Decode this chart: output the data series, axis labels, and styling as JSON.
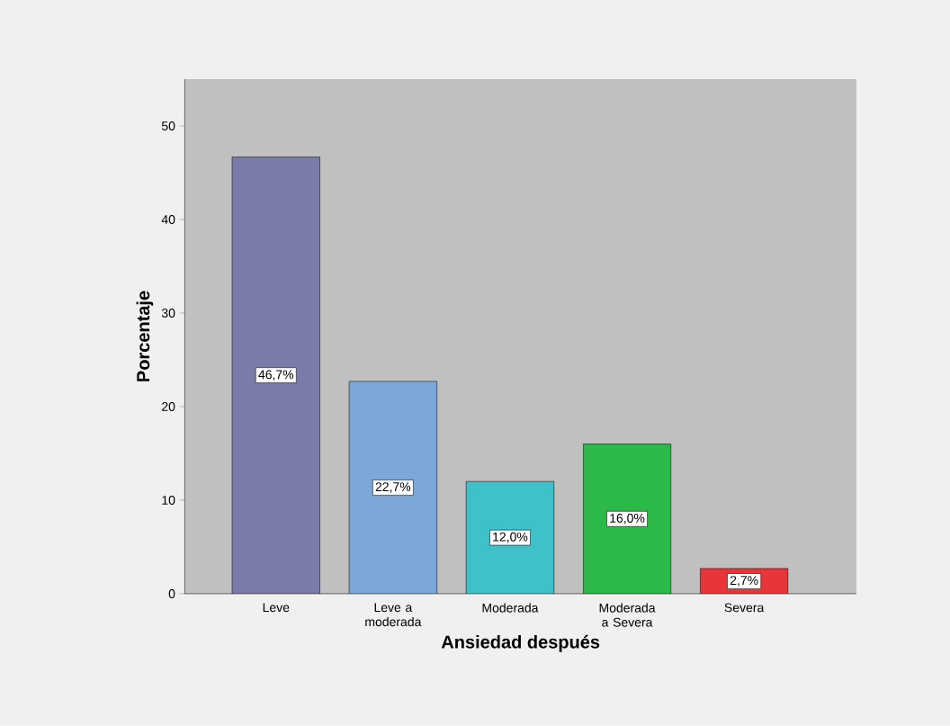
{
  "chart_data": {
    "type": "bar",
    "xlabel": "Ansiedad después",
    "ylabel": "Porcentaje",
    "categories": [
      "Leve",
      "Leve a moderada",
      "Moderada",
      "Moderada a Severa",
      "Severa"
    ],
    "values": [
      46.7,
      22.7,
      12.0,
      16.0,
      2.7
    ],
    "colors": [
      "#7b7baa",
      "#7ba8d8",
      "#40c0c8",
      "#2db84a",
      "#e8353a"
    ],
    "value_labels": [
      "46,7%",
      "22,7%",
      "12,0%",
      "16,0%",
      "2,7%"
    ],
    "ylim": [
      0,
      55
    ],
    "yticks": [
      0,
      10,
      20,
      30,
      40,
      50
    ]
  }
}
